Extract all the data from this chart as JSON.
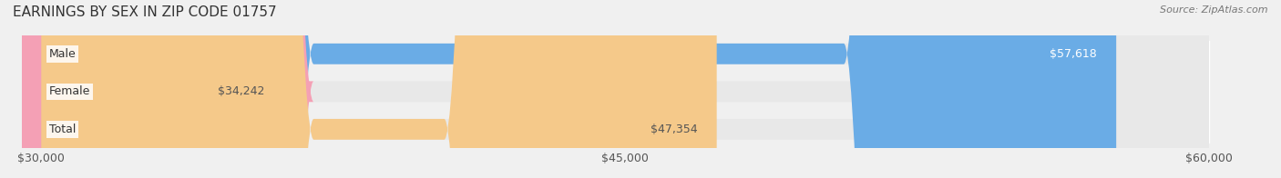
{
  "title": "EARNINGS BY SEX IN ZIP CODE 01757",
  "source": "Source: ZipAtlas.com",
  "categories": [
    "Male",
    "Female",
    "Total"
  ],
  "values": [
    57618,
    34242,
    47354
  ],
  "bar_colors": [
    "#6aace6",
    "#f4a0b5",
    "#f5c98a"
  ],
  "label_colors": [
    "#ffffff",
    "#555555",
    "#555555"
  ],
  "xmin": 30000,
  "xmax": 60000,
  "xticks": [
    30000,
    45000,
    60000
  ],
  "xtick_labels": [
    "$30,000",
    "$45,000",
    "$60,000"
  ],
  "bar_height": 0.55,
  "background_color": "#f0f0f0",
  "bar_bg_color": "#e8e8e8",
  "title_fontsize": 11,
  "label_fontsize": 9,
  "value_fontsize": 9,
  "tick_fontsize": 9
}
